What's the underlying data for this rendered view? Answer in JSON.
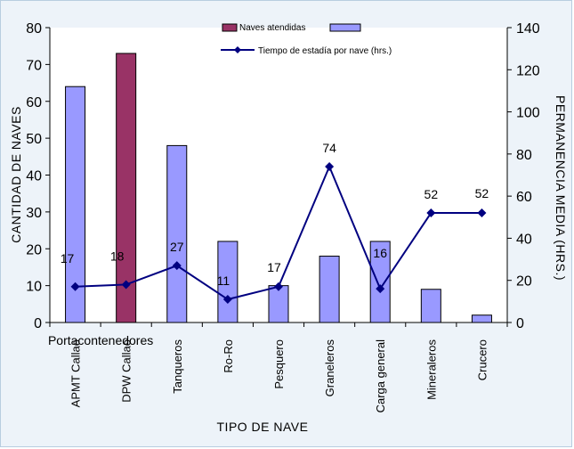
{
  "chart_data": {
    "type": "bar",
    "categories": [
      "APMT Callao",
      "DPW Callao",
      "Tanqueros",
      "Ro-Ro",
      "Pesquero",
      "Graneleros",
      "Carga general",
      "Mineraleros",
      "Crucero"
    ],
    "group_label": "Portacontenedores",
    "series": [
      {
        "name": "Naves atendidas",
        "type": "bar",
        "axis": "left",
        "values": [
          64,
          73,
          48,
          22,
          10,
          18,
          22,
          9,
          2
        ],
        "highlight_index": 1,
        "colors": {
          "default": "#9999ff",
          "highlight": "#993366"
        }
      },
      {
        "name": "Tiempo de estadía por nave (hrs.)",
        "type": "line",
        "axis": "right",
        "values": [
          17,
          18,
          27,
          11,
          17,
          74,
          16,
          52,
          52
        ],
        "color": "#000080"
      }
    ],
    "xlabel": "TIPO DE NAVE",
    "ylabel_left": "CANTIDAD DE NAVES",
    "ylabel_right": "PERMANENCIA MEDIA (HRS.)",
    "ylim_left": [
      0,
      80
    ],
    "yticks_left": [
      0,
      10,
      20,
      30,
      40,
      50,
      60,
      70,
      80
    ],
    "ylim_right": [
      0,
      140
    ],
    "yticks_right": [
      0,
      20,
      40,
      60,
      80,
      100,
      120,
      140
    ],
    "grid": false,
    "legend_position": "top-center",
    "colors": {
      "plot_bg": "#ffffff",
      "bar_outline": "#000000",
      "line": "#000080"
    }
  }
}
